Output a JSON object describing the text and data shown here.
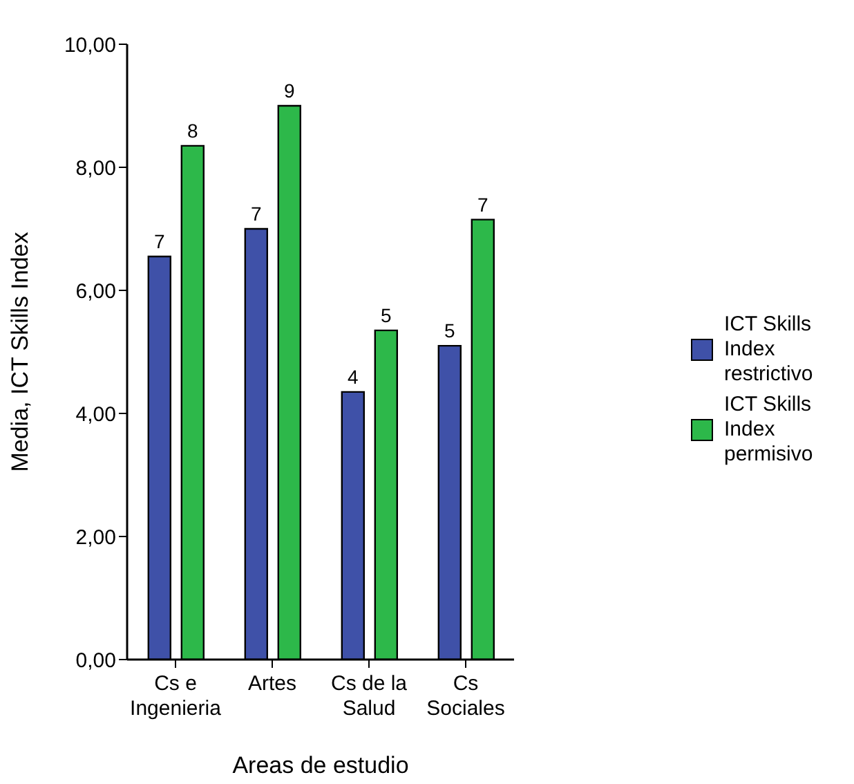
{
  "chart_data": {
    "type": "bar",
    "xlabel": "Areas de estudio",
    "ylabel": "Media, ICT Skills Index",
    "categories": [
      "Cs e Ingenieria",
      "Artes",
      "Cs de la Salud",
      "Cs Sociales"
    ],
    "series": [
      {
        "name": "ICT Skills Index restrictivo",
        "color": "#3f51a8",
        "values": [
          6.55,
          7.0,
          4.35,
          5.1
        ],
        "value_labels": [
          "7",
          "7",
          "4",
          "5"
        ]
      },
      {
        "name": "ICT Skills Index permisivo",
        "color": "#2db84a",
        "values": [
          8.35,
          9.0,
          5.35,
          7.15
        ],
        "value_labels": [
          "8",
          "9",
          "5",
          "7"
        ]
      }
    ],
    "ylim": [
      0,
      10
    ],
    "yticks": [
      {
        "value": 0,
        "label": "0,00"
      },
      {
        "value": 2,
        "label": "2,00"
      },
      {
        "value": 4,
        "label": "4,00"
      },
      {
        "value": 6,
        "label": "6,00"
      },
      {
        "value": 8,
        "label": "8,00"
      },
      {
        "value": 10,
        "label": "10,00"
      }
    ],
    "legend": "right",
    "grid": false
  }
}
